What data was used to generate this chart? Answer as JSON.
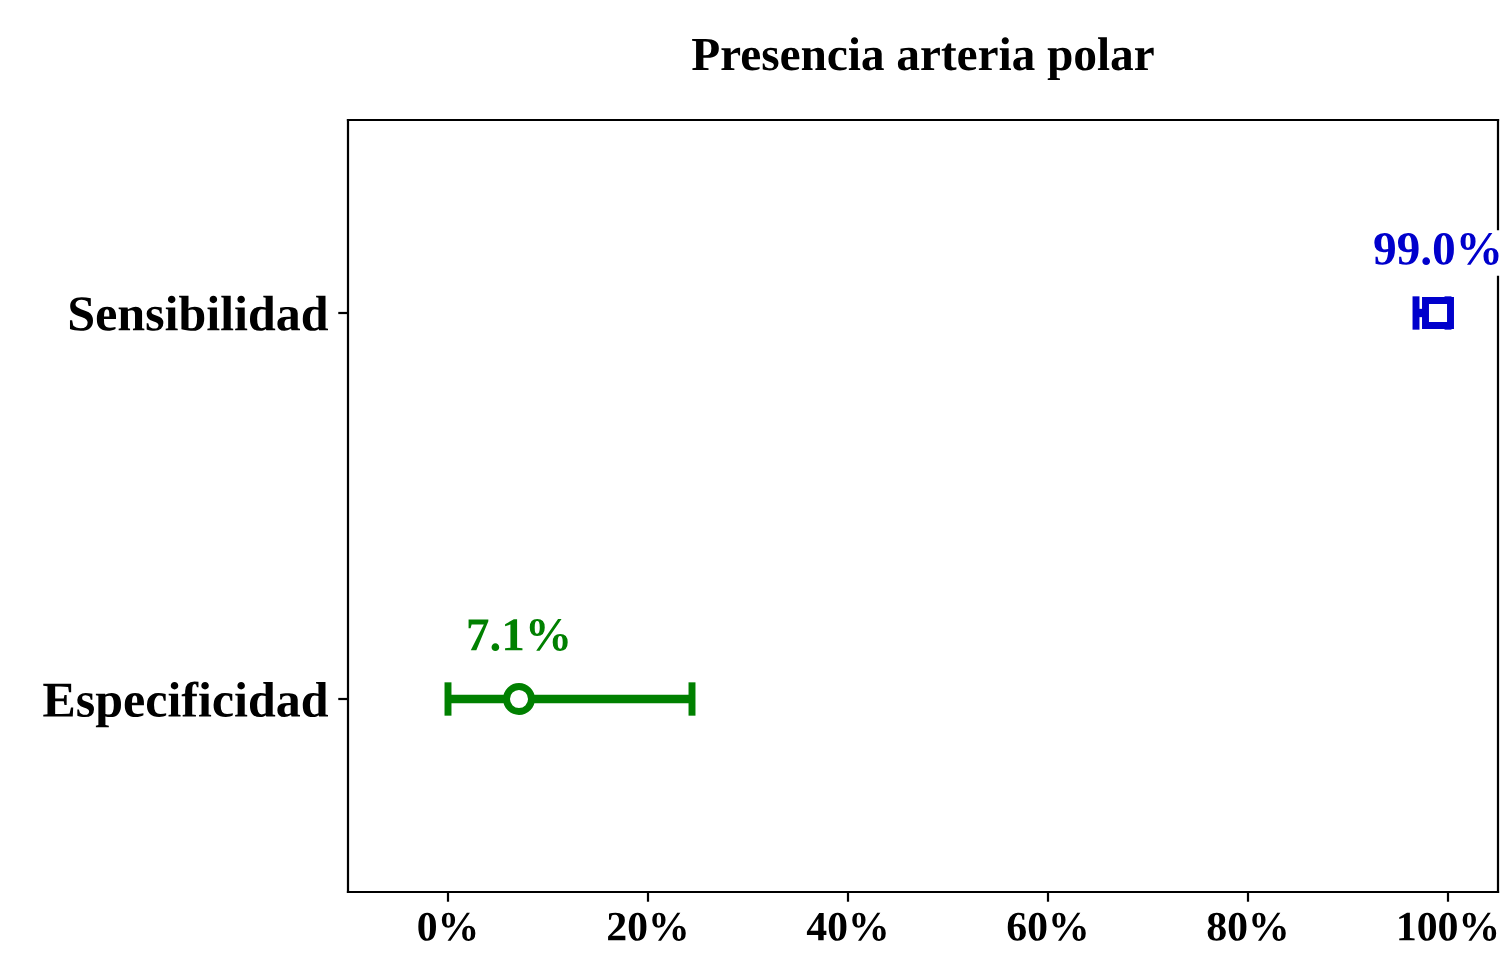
{
  "chart_data": {
    "type": "scatter",
    "title": "Presencia arteria polar",
    "orientation": "horizontal",
    "categories": [
      "Sensibilidad",
      "Especificidad"
    ],
    "series": [
      {
        "color": "#0000cc",
        "marker": "square",
        "values": [
          99.0,
          null
        ],
        "errors": [
          [
            96.8,
            100
          ],
          null
        ],
        "value_labels": [
          "99.0%",
          null
        ]
      },
      {
        "color": "#008000",
        "marker": "circle",
        "values": [
          null,
          7.1
        ],
        "errors": [
          null,
          [
            0,
            24.4
          ]
        ],
        "value_labels": [
          null,
          "7.1%"
        ]
      }
    ],
    "xlim": [
      -10,
      105
    ],
    "xticks": [
      {
        "value": 0,
        "label": "0%"
      },
      {
        "value": 20,
        "label": "20%"
      },
      {
        "value": 40,
        "label": "40%"
      },
      {
        "value": 60,
        "label": "60%"
      },
      {
        "value": 80,
        "label": "80%"
      },
      {
        "value": 100,
        "label": "100%"
      }
    ],
    "grid": false,
    "legend": false
  }
}
